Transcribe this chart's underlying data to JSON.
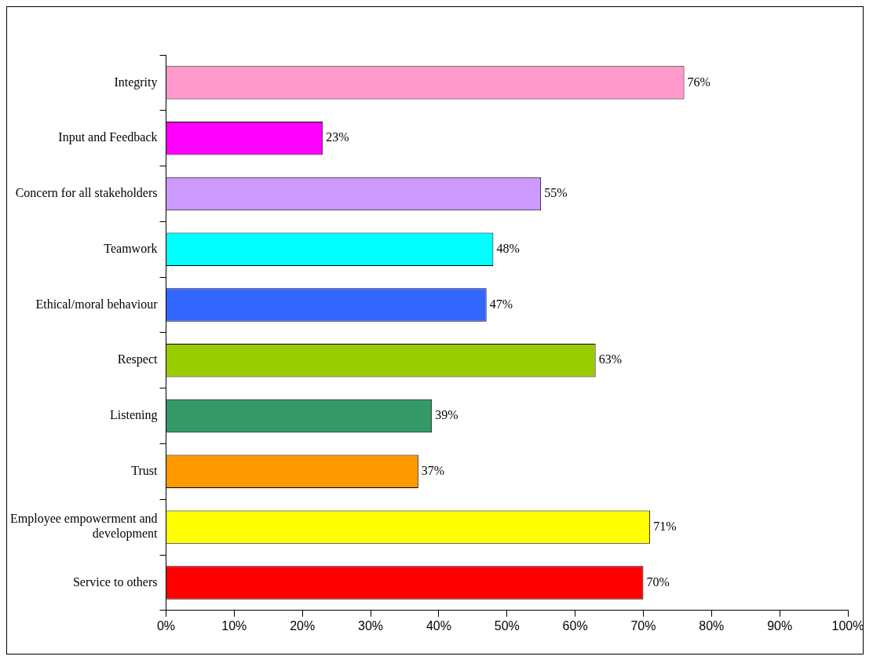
{
  "chart_data": {
    "type": "bar",
    "orientation": "horizontal",
    "categories": [
      "Integrity",
      "Input and Feedback",
      "Concern for all stakeholders",
      "Teamwork",
      "Ethical/moral behaviour",
      "Respect",
      "Listening",
      "Trust",
      "Employee empowerment and development",
      "Service to others"
    ],
    "values": [
      76,
      23,
      55,
      48,
      47,
      63,
      39,
      37,
      71,
      70
    ],
    "colors": [
      "#ff99cc",
      "#ff00ff",
      "#cc99ff",
      "#00ffff",
      "#3366ff",
      "#99cc00",
      "#339966",
      "#ff9900",
      "#ffff00",
      "#ff0000"
    ],
    "value_labels": [
      "76%",
      "23%",
      "55%",
      "48%",
      "47%",
      "63%",
      "39%",
      "37%",
      "71%",
      "70%"
    ],
    "xlim": [
      0,
      100
    ],
    "xticks": [
      {
        "value": 0,
        "label": "0%"
      },
      {
        "value": 10,
        "label": "10%"
      },
      {
        "value": 20,
        "label": "20%"
      },
      {
        "value": 30,
        "label": "30%"
      },
      {
        "value": 40,
        "label": "40%"
      },
      {
        "value": 50,
        "label": "50%"
      },
      {
        "value": 60,
        "label": "60%"
      },
      {
        "value": 70,
        "label": "70%"
      },
      {
        "value": 80,
        "label": "80%"
      },
      {
        "value": 90,
        "label": "90%"
      },
      {
        "value": 100,
        "label": "100%"
      }
    ],
    "legend": false,
    "grid": false
  }
}
